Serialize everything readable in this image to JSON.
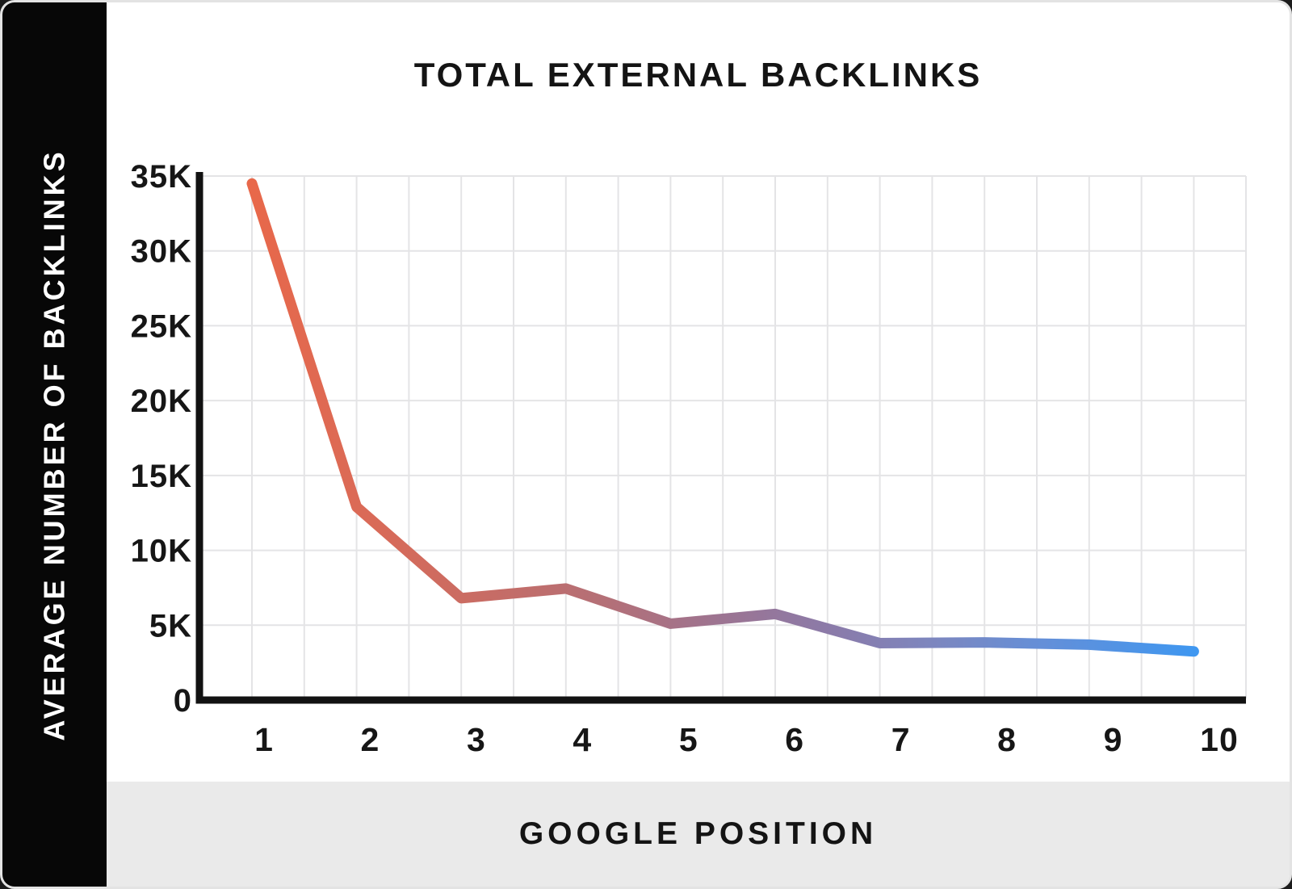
{
  "chart_data": {
    "type": "line",
    "title": "TOTAL EXTERNAL BACKLINKS",
    "xlabel": "GOOGLE POSITION",
    "ylabel": "AVERAGE NUMBER OF BACKLINKS",
    "categories": [
      "1",
      "2",
      "3",
      "4",
      "5",
      "6",
      "7",
      "8",
      "9",
      "10"
    ],
    "values": [
      34500,
      12900,
      6800,
      7450,
      5100,
      5750,
      3800,
      3850,
      3700,
      3250
    ],
    "y_tick_labels": [
      "0",
      "5K",
      "10K",
      "15K",
      "20K",
      "25K",
      "30K",
      "35K"
    ],
    "y_tick_values": [
      0,
      5000,
      10000,
      15000,
      20000,
      25000,
      30000,
      35000
    ],
    "ylim": [
      0,
      35000
    ],
    "grid": true,
    "legend": "none",
    "colors": {
      "axis": "#121212",
      "grid": "#e4e4e6",
      "tick_text": "#161616",
      "sidebar_bg": "#070707",
      "sidebar_text": "#ffffff",
      "footer_bg": "#eaeaea",
      "card_bg": "#ffffff",
      "line_gradient": [
        {
          "offset": 0.0,
          "color": "#e8684a"
        },
        {
          "offset": 0.12,
          "color": "#da6a57"
        },
        {
          "offset": 0.25,
          "color": "#c76c65"
        },
        {
          "offset": 0.38,
          "color": "#b37078"
        },
        {
          "offset": 0.5,
          "color": "#9c7492"
        },
        {
          "offset": 0.62,
          "color": "#8a7baa"
        },
        {
          "offset": 0.72,
          "color": "#7d86be"
        },
        {
          "offset": 0.84,
          "color": "#648fd8"
        },
        {
          "offset": 1.0,
          "color": "#3f97f0"
        }
      ]
    }
  }
}
